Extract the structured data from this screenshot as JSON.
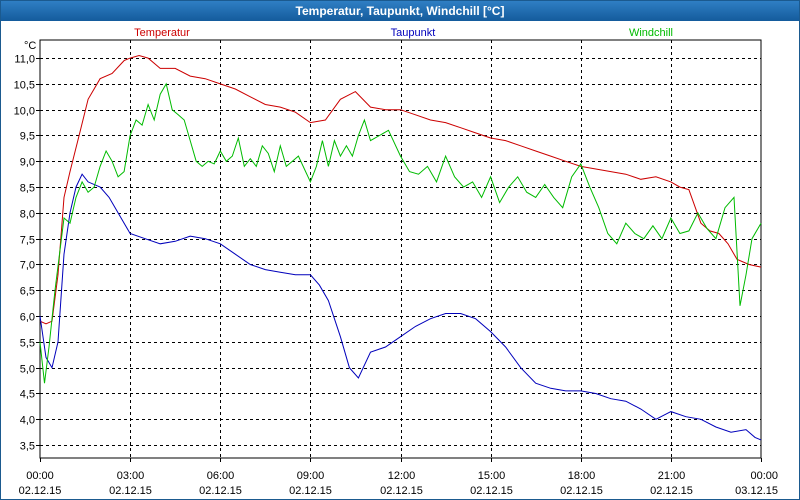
{
  "window": {
    "title": "Temperatur, Taupunkt, Windchill [°C]"
  },
  "chart_data": {
    "type": "line",
    "title": "Temperatur, Taupunkt, Windchill [°C]",
    "ylabel": "°C",
    "ylim": [
      3.25,
      11.35
    ],
    "xlim": [
      0,
      24
    ],
    "grid": true,
    "legend_position": "top",
    "yticks": [
      "3,5",
      "4,0",
      "4,5",
      "5,0",
      "5,5",
      "6,0",
      "6,5",
      "7,0",
      "7,5",
      "8,0",
      "8,5",
      "9,0",
      "9,5",
      "10,0",
      "10,5",
      "11,0"
    ],
    "xticks": [
      {
        "time": "00:00",
        "date": "02.12.15",
        "hour": 0
      },
      {
        "time": "03:00",
        "date": "02.12.15",
        "hour": 3
      },
      {
        "time": "06:00",
        "date": "02.12.15",
        "hour": 6
      },
      {
        "time": "09:00",
        "date": "02.12.15",
        "hour": 9
      },
      {
        "time": "12:00",
        "date": "02.12.15",
        "hour": 12
      },
      {
        "time": "15:00",
        "date": "02.12.15",
        "hour": 15
      },
      {
        "time": "18:00",
        "date": "02.12.15",
        "hour": 18
      },
      {
        "time": "21:00",
        "date": "02.12.15",
        "hour": 21
      },
      {
        "time": "00:00",
        "date": "03.12.15",
        "hour": 24
      }
    ],
    "series": [
      {
        "name": "Temperatur",
        "color": "#cc0000",
        "points": [
          [
            0,
            5.9
          ],
          [
            0.2,
            5.85
          ],
          [
            0.4,
            5.9
          ],
          [
            0.6,
            6.8
          ],
          [
            0.8,
            8.3
          ],
          [
            1.0,
            8.8
          ],
          [
            1.3,
            9.5
          ],
          [
            1.6,
            10.2
          ],
          [
            2.0,
            10.6
          ],
          [
            2.4,
            10.7
          ],
          [
            2.8,
            10.95
          ],
          [
            3.0,
            11.0
          ],
          [
            3.3,
            11.05
          ],
          [
            3.6,
            11.0
          ],
          [
            4.0,
            10.8
          ],
          [
            4.5,
            10.8
          ],
          [
            5.0,
            10.65
          ],
          [
            5.5,
            10.6
          ],
          [
            6.0,
            10.5
          ],
          [
            6.5,
            10.4
          ],
          [
            7.0,
            10.25
          ],
          [
            7.5,
            10.1
          ],
          [
            8.0,
            10.05
          ],
          [
            8.5,
            9.95
          ],
          [
            9.0,
            9.75
          ],
          [
            9.5,
            9.8
          ],
          [
            10.0,
            10.2
          ],
          [
            10.5,
            10.35
          ],
          [
            11.0,
            10.05
          ],
          [
            11.5,
            10.0
          ],
          [
            12.0,
            10.0
          ],
          [
            12.5,
            9.9
          ],
          [
            13.0,
            9.8
          ],
          [
            13.5,
            9.75
          ],
          [
            14.0,
            9.65
          ],
          [
            14.5,
            9.55
          ],
          [
            15.0,
            9.45
          ],
          [
            15.5,
            9.4
          ],
          [
            16.0,
            9.3
          ],
          [
            16.5,
            9.2
          ],
          [
            17.0,
            9.1
          ],
          [
            17.5,
            9.0
          ],
          [
            18.0,
            8.9
          ],
          [
            18.5,
            8.85
          ],
          [
            19.0,
            8.8
          ],
          [
            19.5,
            8.75
          ],
          [
            20.0,
            8.65
          ],
          [
            20.5,
            8.7
          ],
          [
            21.0,
            8.6
          ],
          [
            21.3,
            8.5
          ],
          [
            21.6,
            8.45
          ],
          [
            22.0,
            7.8
          ],
          [
            22.3,
            7.65
          ],
          [
            22.6,
            7.6
          ],
          [
            22.9,
            7.4
          ],
          [
            23.2,
            7.1
          ],
          [
            23.6,
            7.0
          ],
          [
            24.0,
            6.95
          ]
        ]
      },
      {
        "name": "Taupunkt",
        "color": "#0000bb",
        "points": [
          [
            0,
            6.0
          ],
          [
            0.2,
            5.2
          ],
          [
            0.4,
            5.0
          ],
          [
            0.6,
            5.5
          ],
          [
            0.8,
            7.2
          ],
          [
            1.0,
            8.0
          ],
          [
            1.2,
            8.5
          ],
          [
            1.4,
            8.75
          ],
          [
            1.6,
            8.6
          ],
          [
            2.0,
            8.5
          ],
          [
            2.3,
            8.3
          ],
          [
            2.6,
            8.0
          ],
          [
            3.0,
            7.6
          ],
          [
            3.5,
            7.5
          ],
          [
            4.0,
            7.4
          ],
          [
            4.5,
            7.45
          ],
          [
            5.0,
            7.55
          ],
          [
            5.5,
            7.5
          ],
          [
            6.0,
            7.4
          ],
          [
            6.5,
            7.2
          ],
          [
            7.0,
            7.0
          ],
          [
            7.5,
            6.9
          ],
          [
            8.0,
            6.85
          ],
          [
            8.5,
            6.8
          ],
          [
            9.0,
            6.8
          ],
          [
            9.3,
            6.6
          ],
          [
            9.6,
            6.3
          ],
          [
            10.0,
            5.6
          ],
          [
            10.3,
            5.0
          ],
          [
            10.6,
            4.8
          ],
          [
            11.0,
            5.3
          ],
          [
            11.5,
            5.4
          ],
          [
            12.0,
            5.6
          ],
          [
            12.5,
            5.8
          ],
          [
            13.0,
            5.95
          ],
          [
            13.5,
            6.05
          ],
          [
            14.0,
            6.05
          ],
          [
            14.5,
            5.95
          ],
          [
            15.0,
            5.7
          ],
          [
            15.5,
            5.4
          ],
          [
            16.0,
            5.0
          ],
          [
            16.5,
            4.7
          ],
          [
            17.0,
            4.6
          ],
          [
            17.5,
            4.55
          ],
          [
            18.0,
            4.55
          ],
          [
            18.5,
            4.5
          ],
          [
            19.0,
            4.4
          ],
          [
            19.5,
            4.35
          ],
          [
            20.0,
            4.2
          ],
          [
            20.5,
            4.0
          ],
          [
            21.0,
            4.15
          ],
          [
            21.5,
            4.05
          ],
          [
            22.0,
            4.0
          ],
          [
            22.5,
            3.85
          ],
          [
            23.0,
            3.75
          ],
          [
            23.5,
            3.8
          ],
          [
            23.8,
            3.65
          ],
          [
            24.0,
            3.6
          ]
        ]
      },
      {
        "name": "Windchill",
        "color": "#00bb00",
        "points": [
          [
            0,
            5.5
          ],
          [
            0.15,
            4.7
          ],
          [
            0.3,
            5.4
          ],
          [
            0.5,
            6.5
          ],
          [
            0.8,
            7.9
          ],
          [
            1.0,
            7.8
          ],
          [
            1.2,
            8.3
          ],
          [
            1.4,
            8.6
          ],
          [
            1.6,
            8.4
          ],
          [
            1.8,
            8.5
          ],
          [
            2.0,
            8.9
          ],
          [
            2.2,
            9.2
          ],
          [
            2.4,
            9.0
          ],
          [
            2.6,
            8.7
          ],
          [
            2.8,
            8.8
          ],
          [
            3.0,
            9.5
          ],
          [
            3.2,
            9.8
          ],
          [
            3.4,
            9.7
          ],
          [
            3.6,
            10.1
          ],
          [
            3.8,
            9.8
          ],
          [
            4.0,
            10.3
          ],
          [
            4.2,
            10.5
          ],
          [
            4.4,
            10.0
          ],
          [
            4.6,
            9.9
          ],
          [
            4.8,
            9.8
          ],
          [
            5.0,
            9.4
          ],
          [
            5.2,
            9.0
          ],
          [
            5.4,
            8.9
          ],
          [
            5.6,
            9.0
          ],
          [
            5.8,
            8.95
          ],
          [
            6.0,
            9.2
          ],
          [
            6.2,
            9.0
          ],
          [
            6.4,
            9.1
          ],
          [
            6.6,
            9.45
          ],
          [
            6.8,
            8.9
          ],
          [
            7.0,
            9.05
          ],
          [
            7.2,
            8.9
          ],
          [
            7.4,
            9.3
          ],
          [
            7.6,
            9.15
          ],
          [
            7.8,
            8.8
          ],
          [
            8.0,
            9.3
          ],
          [
            8.2,
            8.9
          ],
          [
            8.4,
            9.0
          ],
          [
            8.6,
            9.1
          ],
          [
            8.8,
            8.85
          ],
          [
            9.0,
            8.6
          ],
          [
            9.2,
            8.9
          ],
          [
            9.4,
            9.4
          ],
          [
            9.6,
            8.9
          ],
          [
            9.8,
            9.4
          ],
          [
            10.0,
            9.1
          ],
          [
            10.2,
            9.3
          ],
          [
            10.4,
            9.1
          ],
          [
            10.6,
            9.5
          ],
          [
            10.8,
            9.8
          ],
          [
            11.0,
            9.4
          ],
          [
            11.3,
            9.5
          ],
          [
            11.6,
            9.6
          ],
          [
            12.0,
            9.1
          ],
          [
            12.3,
            8.8
          ],
          [
            12.6,
            8.75
          ],
          [
            12.9,
            8.9
          ],
          [
            13.2,
            8.6
          ],
          [
            13.5,
            9.1
          ],
          [
            13.8,
            8.7
          ],
          [
            14.1,
            8.5
          ],
          [
            14.4,
            8.6
          ],
          [
            14.7,
            8.3
          ],
          [
            15.0,
            8.7
          ],
          [
            15.3,
            8.2
          ],
          [
            15.6,
            8.5
          ],
          [
            15.9,
            8.7
          ],
          [
            16.2,
            8.4
          ],
          [
            16.5,
            8.3
          ],
          [
            16.8,
            8.55
          ],
          [
            17.1,
            8.3
          ],
          [
            17.4,
            8.1
          ],
          [
            17.7,
            8.7
          ],
          [
            18.0,
            8.95
          ],
          [
            18.3,
            8.5
          ],
          [
            18.6,
            8.1
          ],
          [
            18.9,
            7.6
          ],
          [
            19.2,
            7.4
          ],
          [
            19.5,
            7.8
          ],
          [
            19.8,
            7.6
          ],
          [
            20.1,
            7.5
          ],
          [
            20.4,
            7.75
          ],
          [
            20.7,
            7.5
          ],
          [
            21.0,
            7.9
          ],
          [
            21.3,
            7.6
          ],
          [
            21.6,
            7.65
          ],
          [
            21.9,
            8.0
          ],
          [
            22.2,
            7.7
          ],
          [
            22.5,
            7.5
          ],
          [
            22.8,
            8.1
          ],
          [
            23.1,
            8.3
          ],
          [
            23.3,
            6.2
          ],
          [
            23.5,
            6.8
          ],
          [
            23.7,
            7.5
          ],
          [
            24.0,
            7.8
          ]
        ]
      }
    ]
  }
}
